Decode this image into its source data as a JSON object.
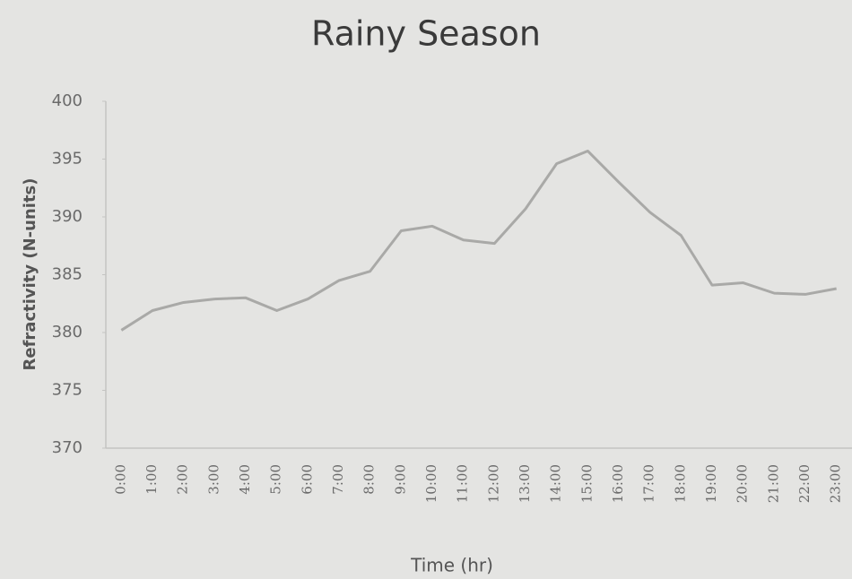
{
  "chart_data": {
    "type": "line",
    "title": "Rainy Season",
    "x_label": "Time (hr)",
    "y_label": "Refractivity (N-units)",
    "categories": [
      "0:00",
      "1:00",
      "2:00",
      "3:00",
      "4:00",
      "5:00",
      "6:00",
      "7:00",
      "8:00",
      "9:00",
      "10:00",
      "11:00",
      "12:00",
      "13:00",
      "14:00",
      "15:00",
      "16:00",
      "17:00",
      "18:00",
      "19:00",
      "20:00",
      "21:00",
      "22:00",
      "23:00"
    ],
    "series": [
      {
        "name": "Refractivity",
        "color": "#a9a9a7",
        "values": [
          380.2,
          381.9,
          382.6,
          382.9,
          383.0,
          381.9,
          382.9,
          384.5,
          385.3,
          388.8,
          389.2,
          388.0,
          387.7,
          390.7,
          394.6,
          395.7,
          393.0,
          390.4,
          388.4,
          384.1,
          384.3,
          383.4,
          383.3,
          383.8
        ]
      }
    ],
    "ylim": [
      370,
      400
    ],
    "yticks": [
      370,
      375,
      380,
      385,
      390,
      395,
      400
    ],
    "grid": false,
    "legend": false
  }
}
